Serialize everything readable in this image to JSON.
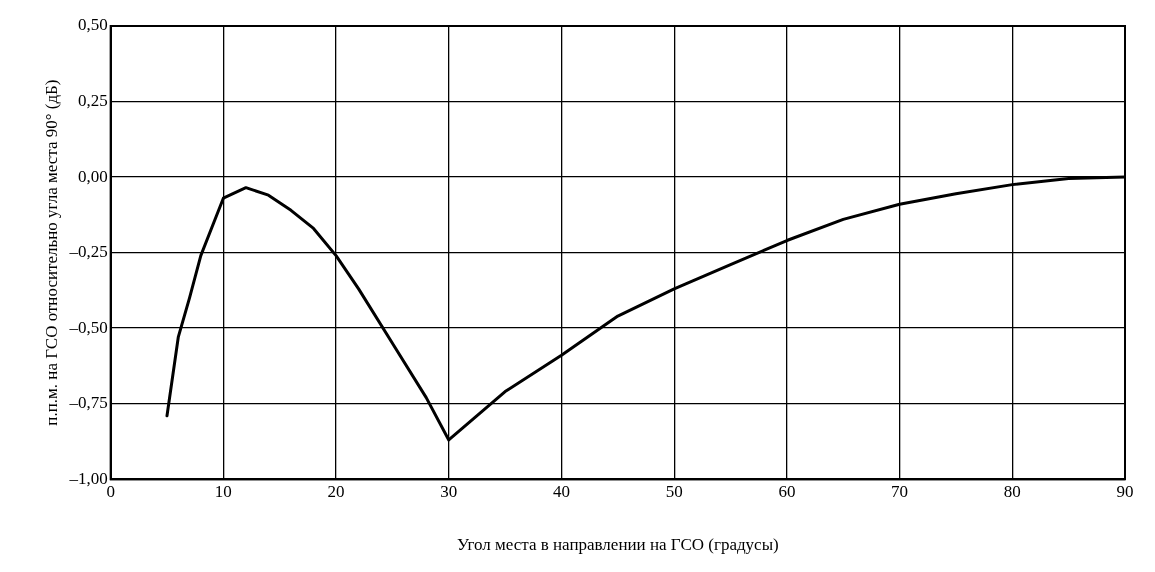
{
  "chart_data": {
    "type": "line",
    "xlabel": "Угол места в направлении на ГСО (градусы)",
    "ylabel": "п.п.м. на ГСО относительно угла места 90° (дБ)",
    "x": [
      5,
      6,
      7,
      8,
      10,
      12,
      14,
      16,
      18,
      20,
      22,
      25,
      28,
      30,
      35,
      40,
      45,
      50,
      55,
      60,
      65,
      70,
      75,
      80,
      85,
      90
    ],
    "series": [
      {
        "color": "#000000",
        "values": [
          -0.79,
          -0.53,
          -0.4,
          -0.26,
          -0.07,
          -0.035,
          -0.06,
          -0.11,
          -0.17,
          -0.26,
          -0.37,
          -0.55,
          -0.73,
          -0.87,
          -0.71,
          -0.59,
          -0.46,
          -0.37,
          -0.29,
          -0.21,
          -0.14,
          -0.09,
          -0.055,
          -0.025,
          -0.005,
          0
        ]
      }
    ],
    "xlim": [
      0,
      90
    ],
    "xticks": [
      0,
      10,
      20,
      30,
      40,
      50,
      60,
      70,
      80,
      90
    ],
    "ylim": [
      -1,
      0.5
    ],
    "yticks": [
      {
        "value": -1,
        "label": "–1,00"
      },
      {
        "value": -0.75,
        "label": "–0,75"
      },
      {
        "value": -0.5,
        "label": "–0,50"
      },
      {
        "value": -0.25,
        "label": "–0,25"
      },
      {
        "value": 0,
        "label": "0,00"
      },
      {
        "value": 0.25,
        "label": "0,25"
      },
      {
        "value": 0.5,
        "label": "0,50"
      }
    ],
    "grid": true,
    "legend": false,
    "marker": "none",
    "line_style": "solid"
  }
}
